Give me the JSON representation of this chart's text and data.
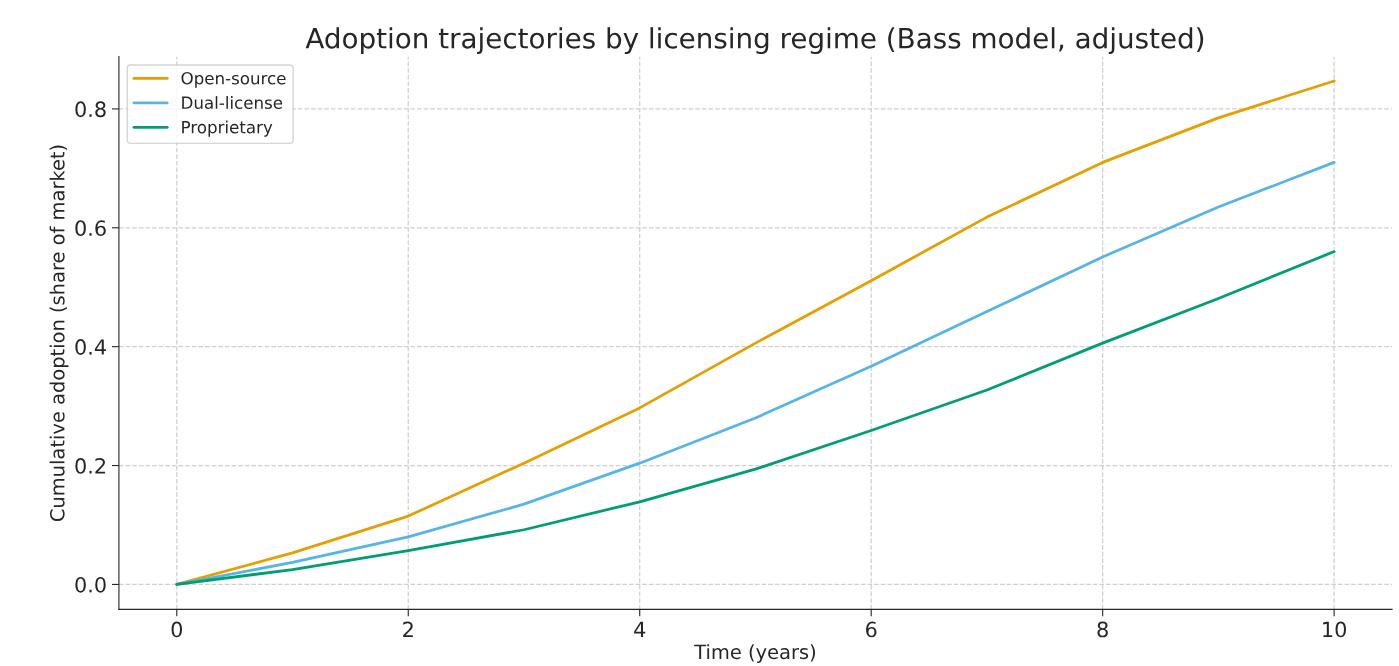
{
  "chart_data": {
    "type": "line",
    "title": "Adoption trajectories by licensing regime (Bass model, adjusted)",
    "xlabel": "Time (years)",
    "ylabel": "Cumulative adoption (share of market)",
    "x": [
      0,
      1,
      2,
      3,
      4,
      5,
      6,
      7,
      8,
      9,
      10
    ],
    "series": [
      {
        "name": "Open-source",
        "color": "#e69f00",
        "values": [
          0,
          0.053,
          0.115,
          0.204,
          0.297,
          0.406,
          0.511,
          0.618,
          0.71,
          0.785,
          0.847
        ]
      },
      {
        "name": "Dual-license",
        "color": "#56b4e9",
        "values": [
          0,
          0.037,
          0.08,
          0.135,
          0.204,
          0.28,
          0.367,
          0.459,
          0.551,
          0.635,
          0.71
        ]
      },
      {
        "name": "Proprietary",
        "color": "#009e73",
        "values": [
          0,
          0.025,
          0.057,
          0.092,
          0.139,
          0.194,
          0.259,
          0.327,
          0.406,
          0.481,
          0.56
        ]
      }
    ],
    "xlim": [
      -0.5,
      10.5
    ],
    "ylim": [
      -0.042,
      0.888
    ],
    "xticks": [
      0,
      2,
      4,
      6,
      8,
      10
    ],
    "yticks": [
      {
        "value": 0,
        "label": "0.0"
      },
      {
        "value": 0.2,
        "label": "0.2"
      },
      {
        "value": 0.4,
        "label": "0.4"
      },
      {
        "value": 0.6,
        "label": "0.6"
      },
      {
        "value": 0.8,
        "label": "0.8"
      }
    ],
    "grid": true,
    "legend": "top left",
    "line_style": "solid",
    "marker": "none"
  }
}
